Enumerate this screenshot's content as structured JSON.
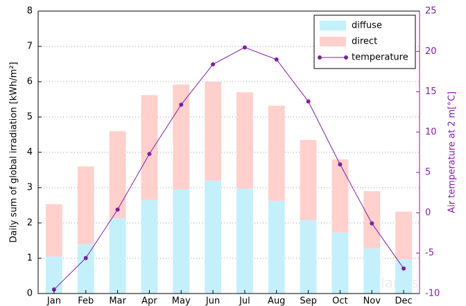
{
  "chart_data": {
    "type": "bar",
    "categories": [
      "Jan",
      "Feb",
      "Mar",
      "Apr",
      "May",
      "Jun",
      "Jul",
      "Aug",
      "Sep",
      "Oct",
      "Nov",
      "Dec"
    ],
    "ylabel": "Daily sum of global irradiation [kWh/m²]",
    "y2label": "Air temperature at 2 m[°C]",
    "watermark": "solargis",
    "ylim": [
      0,
      8
    ],
    "yticks": [
      0,
      1,
      2,
      3,
      4,
      5,
      6,
      7,
      8
    ],
    "y2lim": [
      -10,
      25
    ],
    "y2ticks": [
      -10,
      -5,
      0,
      5,
      10,
      15,
      20,
      25
    ],
    "grid": true,
    "legend": "upper right",
    "y2color": "#7e1fa6",
    "series": [
      {
        "name": "diffuse",
        "type": "bar",
        "color": "#c4f0fc",
        "values": [
          1.05,
          1.4,
          2.13,
          2.65,
          2.95,
          3.2,
          2.97,
          2.63,
          2.08,
          1.73,
          1.28,
          0.98
        ]
      },
      {
        "name": "direct",
        "type": "bar",
        "color": "#ffd0cc",
        "values": [
          1.48,
          2.2,
          2.47,
          2.97,
          2.97,
          2.8,
          2.73,
          2.69,
          2.27,
          2.07,
          1.62,
          1.34
        ]
      },
      {
        "name": "temperature",
        "type": "line",
        "axis": "y2",
        "color": "#7e1fa6",
        "values": [
          -9.5,
          -5.6,
          0.4,
          7.3,
          13.4,
          18.4,
          20.5,
          19.0,
          13.8,
          6.0,
          -1.3,
          -6.9
        ]
      }
    ]
  }
}
